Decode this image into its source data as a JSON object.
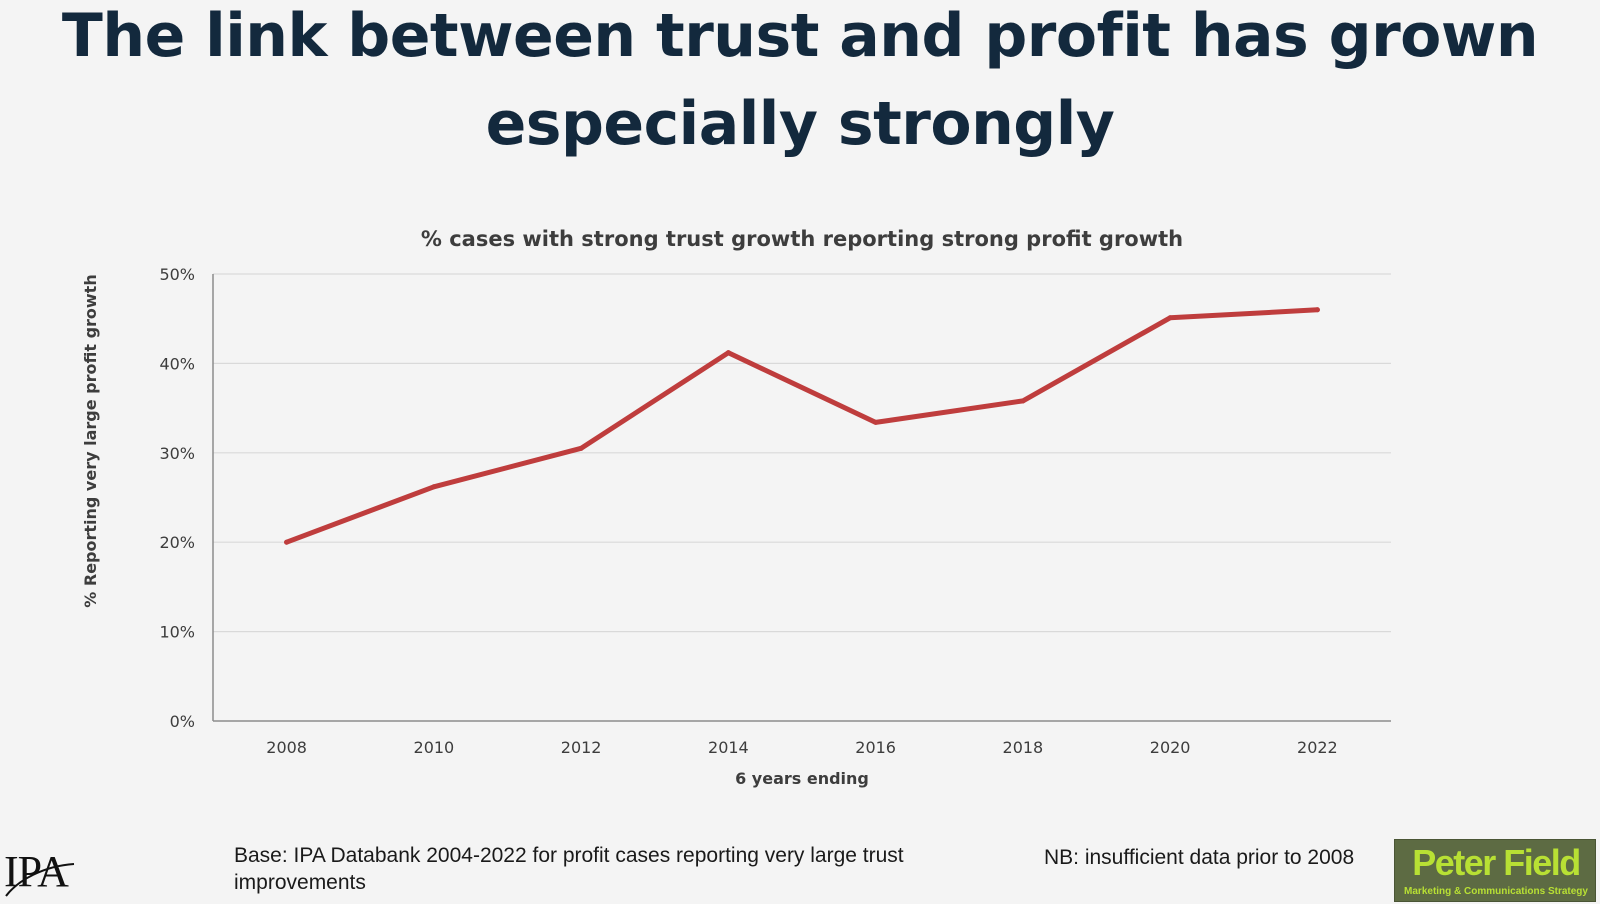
{
  "slide": {
    "title_line1": "The link between trust and profit has grown",
    "title_line2": "especially strongly",
    "footer_base": "Base: IPA Databank 2004-2022 for profit cases reporting very large trust improvements",
    "footer_nb": "NB: insufficient data prior to 2008"
  },
  "logos": {
    "ipa": "IPA",
    "peter_field_name": "Peter Field",
    "peter_field_tagline": "Marketing & Communications Strategy"
  },
  "colors": {
    "line": "#bf3d3d",
    "grid": "#d9d9d9",
    "axis": "#8c8c8c"
  },
  "chart_data": {
    "type": "line",
    "title": "% cases with strong trust growth reporting strong profit growth",
    "xlabel": "6 years ending",
    "ylabel": "% Reporting very large profit growth",
    "categories": [
      "2008",
      "2010",
      "2012",
      "2014",
      "2016",
      "2018",
      "2020",
      "2022"
    ],
    "series": [
      {
        "values": [
          20,
          26.2,
          30.5,
          41.2,
          33.4,
          35.8,
          45.1,
          46
        ]
      }
    ],
    "ylim": [
      0,
      50
    ],
    "yticks": [
      0,
      10,
      20,
      30,
      40,
      50
    ],
    "ytick_labels": [
      "0%",
      "10%",
      "20%",
      "30%",
      "40%",
      "50%"
    ],
    "grid": true,
    "legend": "none"
  }
}
